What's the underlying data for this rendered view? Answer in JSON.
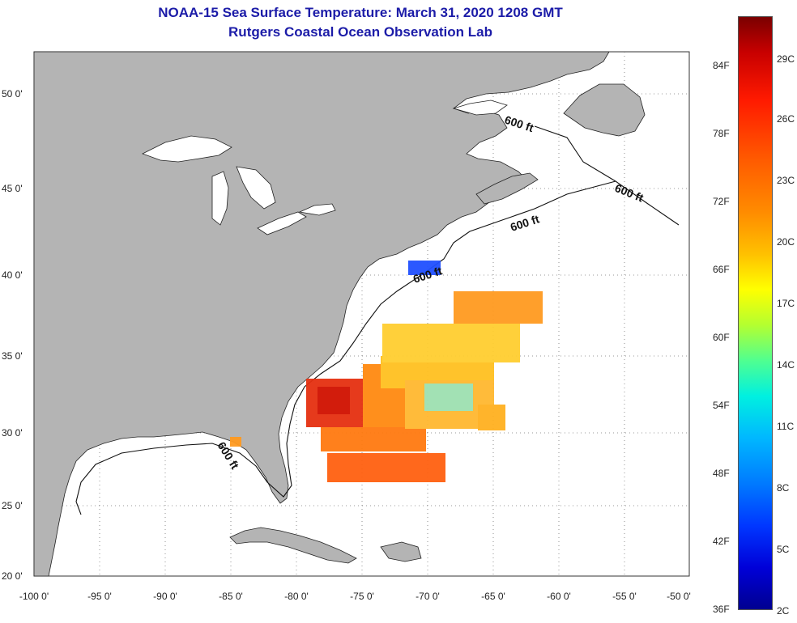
{
  "title": {
    "line1": "NOAA-15 Sea Surface Temperature:  March 31, 2020 1208 GMT",
    "line2": "Rutgers Coastal Ocean Observation Lab"
  },
  "lat_labels": [
    "50 0'",
    "45 0'",
    "40 0'",
    "35 0'",
    "30 0'",
    "25 0'",
    "20 0'"
  ],
  "lon_labels": [
    "-100 0'",
    "-95 0'",
    "-90 0'",
    "-85 0'",
    "-80 0'",
    "-75 0'",
    "-70 0'",
    "-65 0'",
    "-60 0'",
    "-55 0'",
    "-50 0'"
  ],
  "isobath_label": "600 ft",
  "colorbar": {
    "fahrenheit": [
      "84F",
      "78F",
      "72F",
      "66F",
      "60F",
      "54F",
      "48F",
      "42F",
      "36F"
    ],
    "celsius": [
      "29C",
      "26C",
      "23C",
      "20C",
      "17C",
      "14C",
      "11C",
      "8C",
      "5C",
      "2C"
    ]
  },
  "colors": {
    "land": "#b4b4b4",
    "title": "#1c1ca8",
    "ocean": "#ffffff"
  }
}
